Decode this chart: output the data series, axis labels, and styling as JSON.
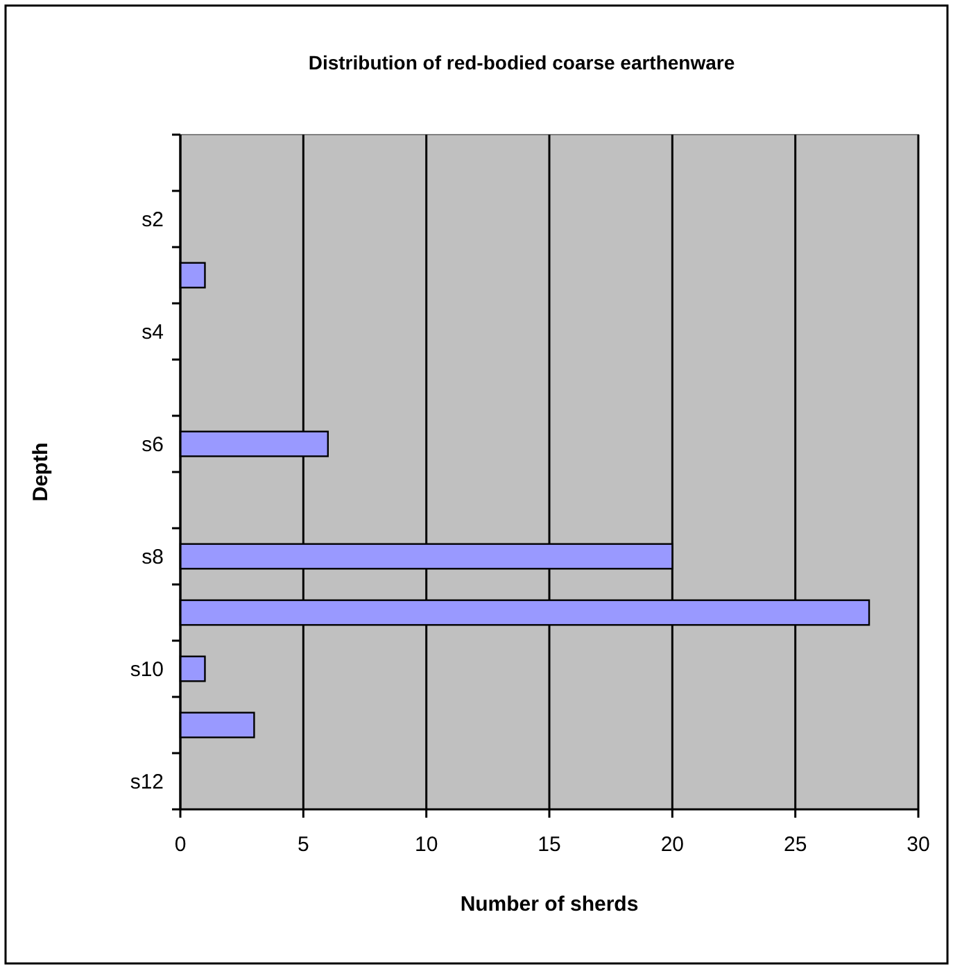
{
  "chart_data": {
    "type": "bar",
    "orientation": "horizontal",
    "title": "Distribution of red-bodied coarse earthenware",
    "xlabel": "Number of sherds",
    "ylabel": "Depth",
    "categories": [
      null,
      "s2",
      null,
      "s4",
      null,
      "s6",
      null,
      "s8",
      null,
      "s10",
      null,
      "s12"
    ],
    "values": [
      0,
      0,
      1,
      0,
      0,
      6,
      0,
      20,
      28,
      1,
      3,
      0
    ],
    "color": "#9999ff",
    "xlim": [
      0,
      30
    ],
    "xticks": [
      0,
      5,
      10,
      15,
      20,
      25,
      30
    ],
    "grid": "x"
  }
}
